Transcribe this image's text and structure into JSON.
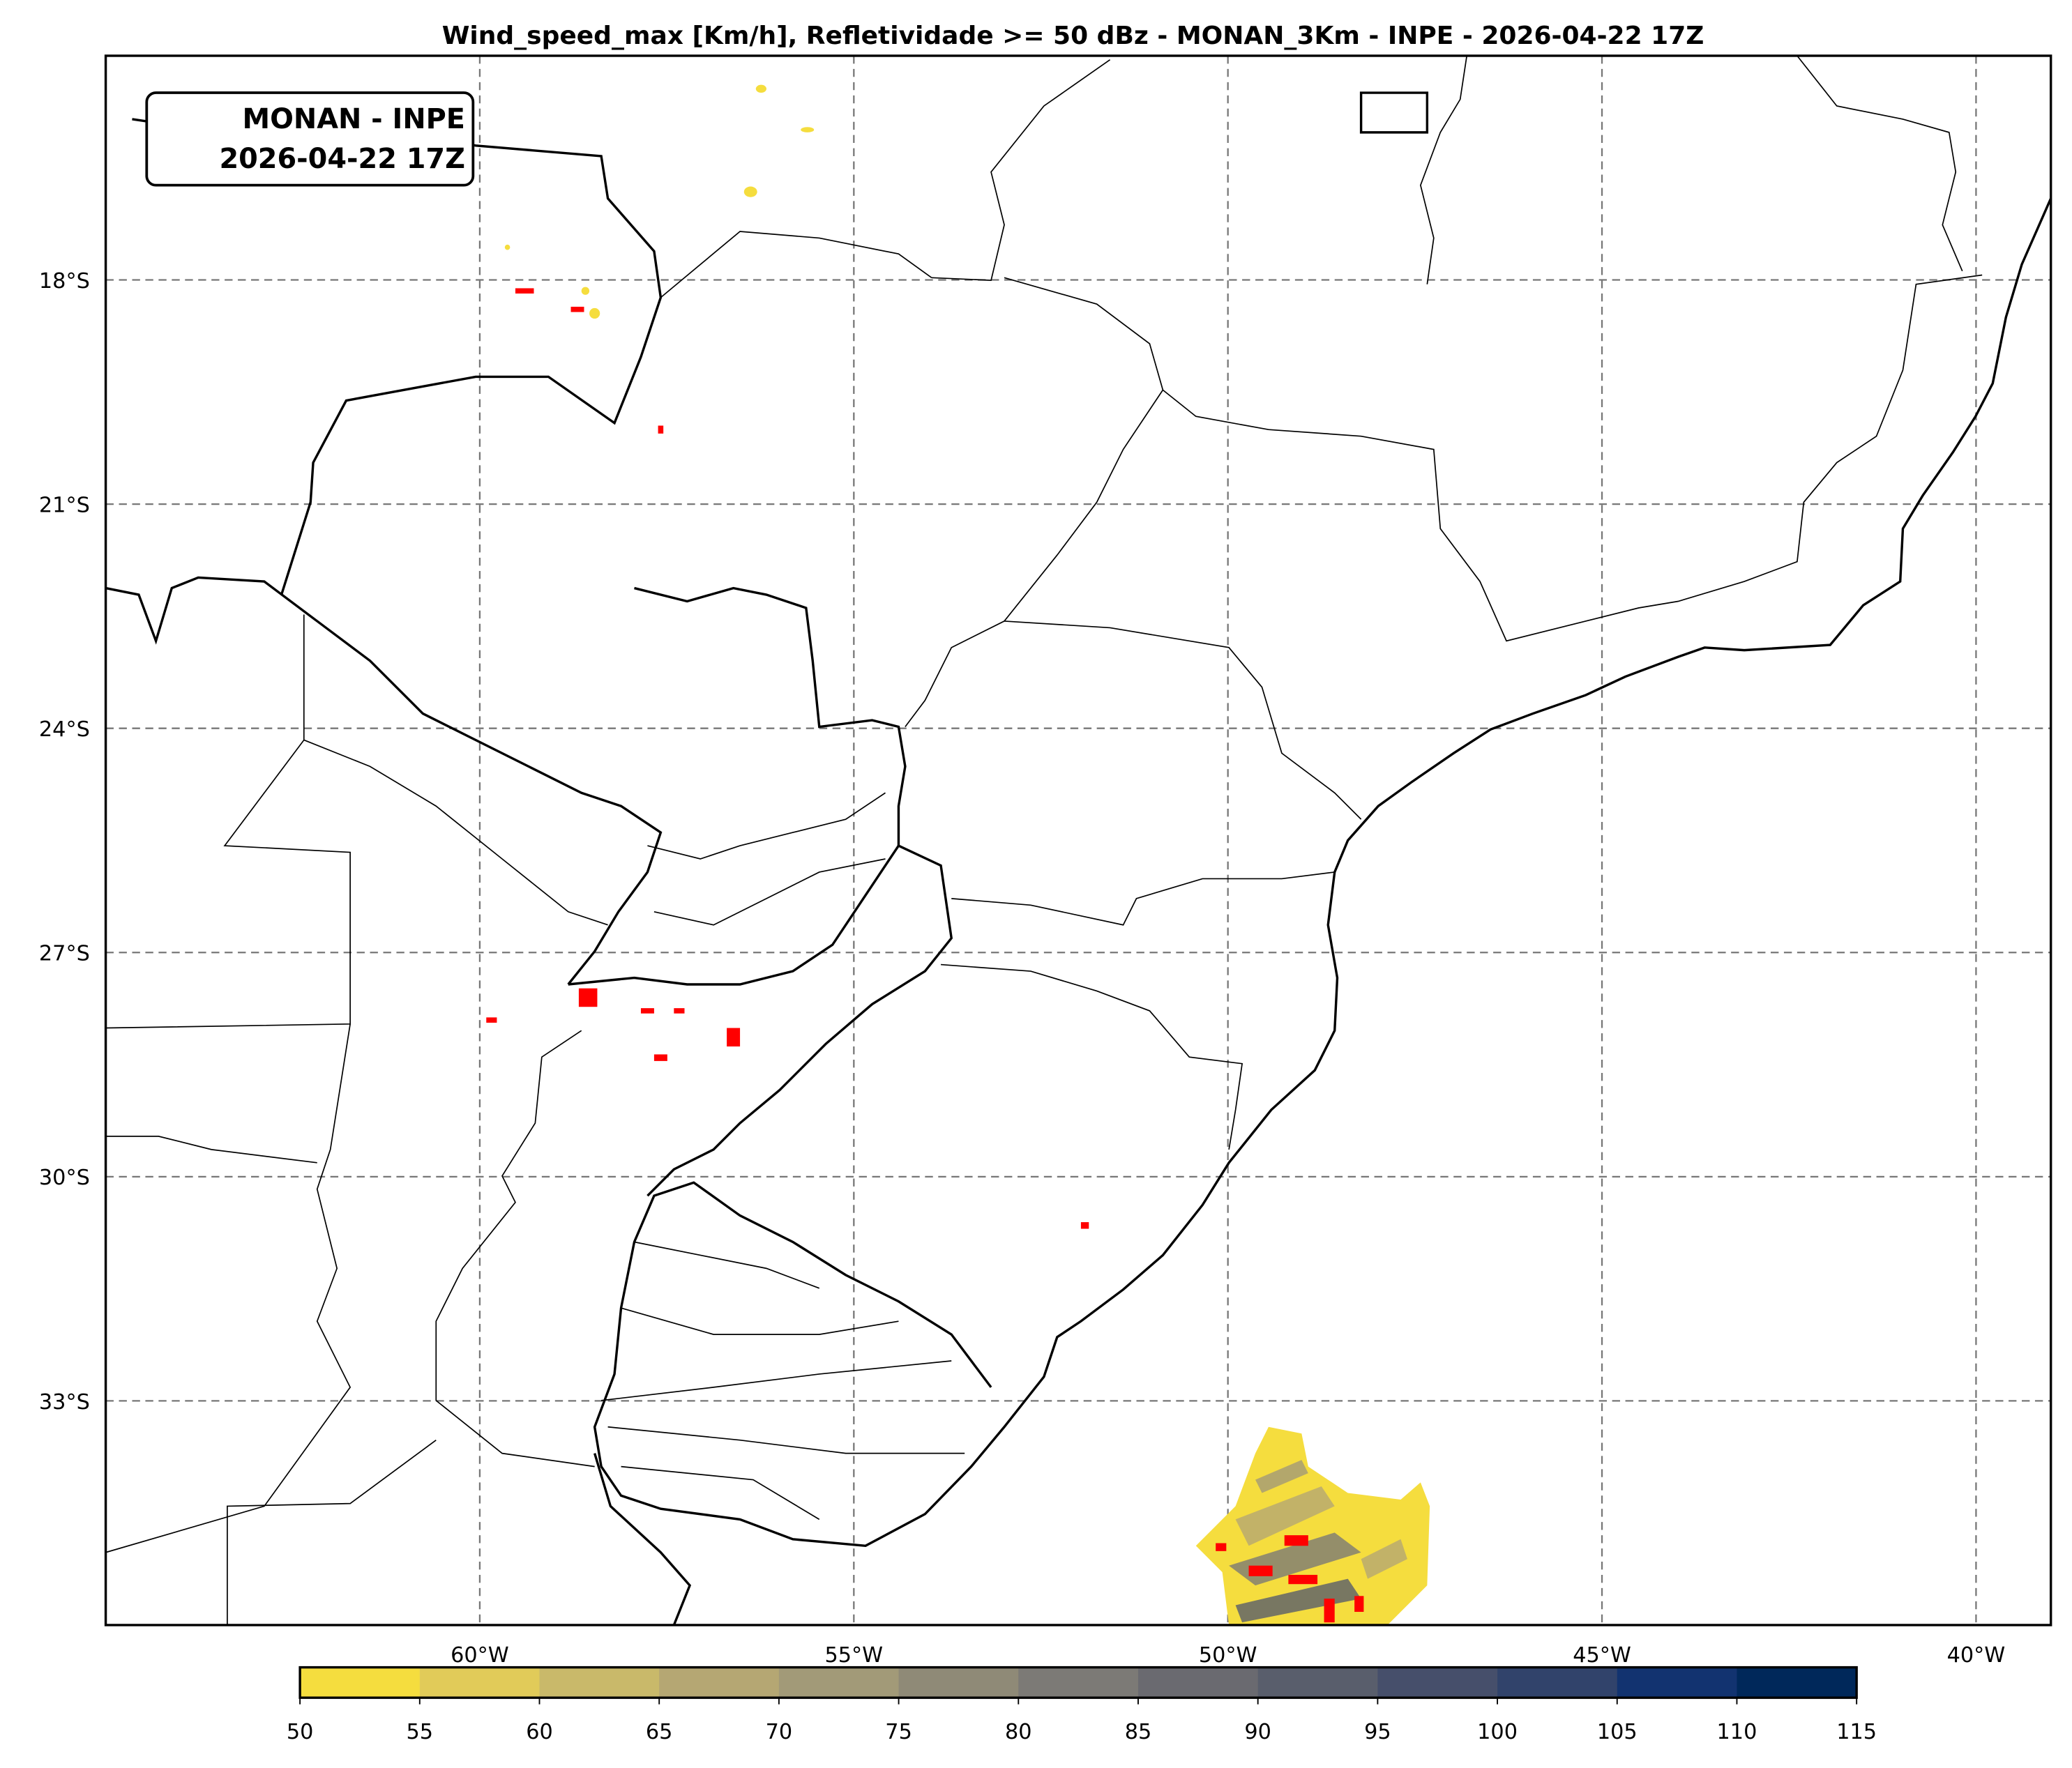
{
  "title": "Wind_speed_max [Km/h], Refletividade >= 50 dBz - MONAN_3Km - INPE - 2026-04-22 17Z",
  "label_box": {
    "line1": "MONAN - INPE",
    "line2": "2026-04-22 17Z"
  },
  "chart_data": {
    "type": "heatmap",
    "map_extent": {
      "lon": [
        -65,
        -39
      ],
      "lat": [
        -36,
        -15
      ]
    },
    "grid": true,
    "lat_ticks": [
      "18°S",
      "21°S",
      "24°S",
      "27°S",
      "30°S",
      "33°S"
    ],
    "lon_ticks": [
      "60°W",
      "55°W",
      "50°W",
      "45°W",
      "40°W"
    ],
    "colorbar": {
      "orientation": "horizontal",
      "placement": "bottom",
      "levels": [
        "50",
        "55",
        "60",
        "65",
        "70",
        "75",
        "80",
        "85",
        "90",
        "95",
        "100",
        "105",
        "110",
        "115"
      ],
      "colors": [
        "#f5dd3e",
        "#e1cb59",
        "#c9b96a",
        "#b5a773",
        "#a29a78",
        "#8f8a77",
        "#7c7a76",
        "#6a6a70",
        "#595e6c",
        "#464f6b",
        "#31436b",
        "#123370",
        "#00285a"
      ]
    },
    "reflectivity_overlay_color": "#ff0000"
  }
}
